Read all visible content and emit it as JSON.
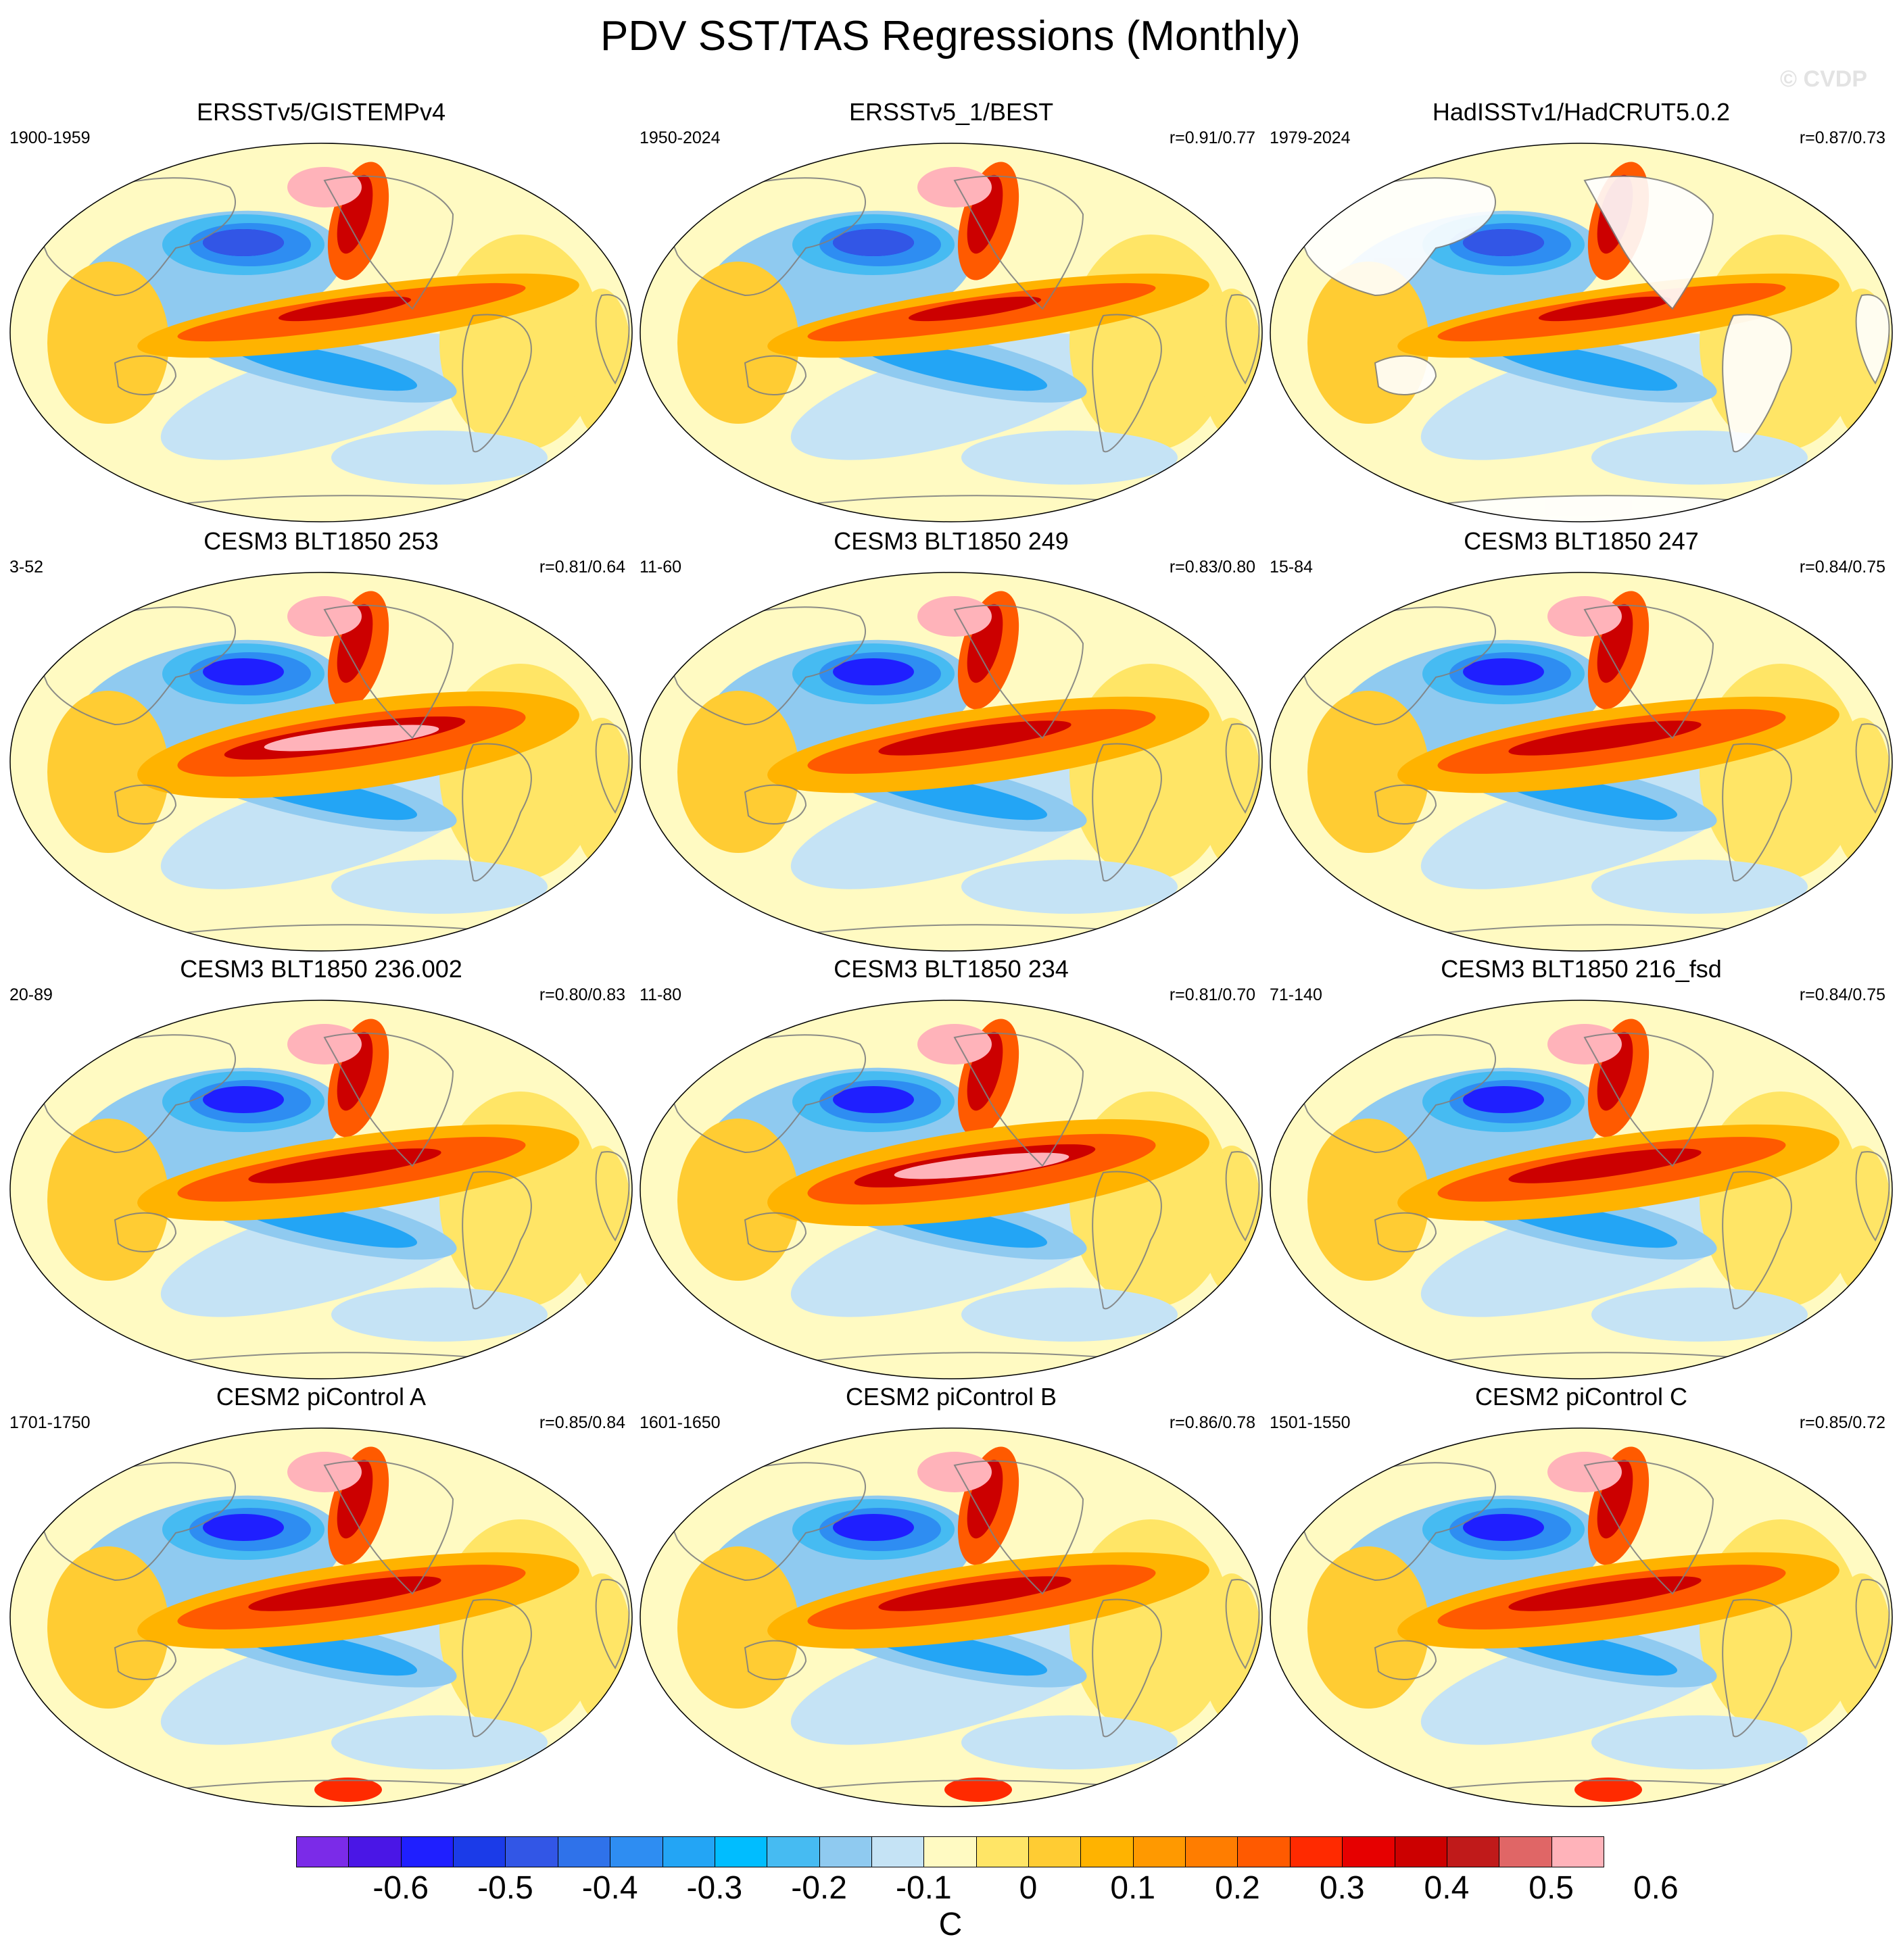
{
  "title": "PDV SST/TAS Regressions (Monthly)",
  "watermark": "© CVDP",
  "colors": {
    "levels": [
      "#7b2be8",
      "#4a16e6",
      "#1f1fff",
      "#1b3be8",
      "#3256e6",
      "#2f72ea",
      "#2e8df2",
      "#23a5f5",
      "#00bdff",
      "#46bbf2",
      "#8fcaf0",
      "#c5e3f5",
      "#fffac2",
      "#ffe566",
      "#ffcc33",
      "#ffb300",
      "#ff9900",
      "#ff7d00",
      "#ff5a00",
      "#ff2a00",
      "#e60000",
      "#cc0000",
      "#c01a1a",
      "#e06666",
      "#ffb3ba"
    ],
    "land": "#ffffff",
    "coast": "#7f7f7f"
  },
  "panels": [
    {
      "title": "ERSSTv5/GISTEMPv4",
      "left": "1900-1959",
      "right": "",
      "style": "obs"
    },
    {
      "title": "ERSSTv5_1/BEST",
      "left": "1950-2024",
      "right": "r=0.91/0.77",
      "style": "obs"
    },
    {
      "title": "HadISSTv1/HadCRUT5.0.2",
      "left": "1979-2024",
      "right": "r=0.87/0.73",
      "style": "had"
    },
    {
      "title": "CESM3 BLT1850 253",
      "left": "3-52",
      "right": "r=0.81/0.64",
      "style": "strong"
    },
    {
      "title": "CESM3 BLT1850 249",
      "left": "11-60",
      "right": "r=0.83/0.80",
      "style": "model"
    },
    {
      "title": "CESM3 BLT1850 247",
      "left": "15-84",
      "right": "r=0.84/0.75",
      "style": "model"
    },
    {
      "title": "CESM3 BLT1850 236.002",
      "left": "20-89",
      "right": "r=0.80/0.83",
      "style": "model"
    },
    {
      "title": "CESM3 BLT1850 234",
      "left": "11-80",
      "right": "r=0.81/0.70",
      "style": "strong"
    },
    {
      "title": "CESM3 BLT1850 216_fsd",
      "left": "71-140",
      "right": "r=0.84/0.75",
      "style": "model"
    },
    {
      "title": "CESM2 piControl A",
      "left": "1701-1750",
      "right": "r=0.85/0.84",
      "style": "pi"
    },
    {
      "title": "CESM2 piControl B",
      "left": "1601-1650",
      "right": "r=0.86/0.78",
      "style": "pi"
    },
    {
      "title": "CESM2 piControl C",
      "left": "1501-1550",
      "right": "r=0.85/0.72",
      "style": "pi"
    }
  ],
  "colorbar": {
    "labels": [
      "-0.6",
      "-0.5",
      "-0.4",
      "-0.3",
      "-0.2",
      "-0.1",
      "0",
      "0.1",
      "0.2",
      "0.3",
      "0.4",
      "0.5",
      "0.6"
    ],
    "unit": "C"
  }
}
